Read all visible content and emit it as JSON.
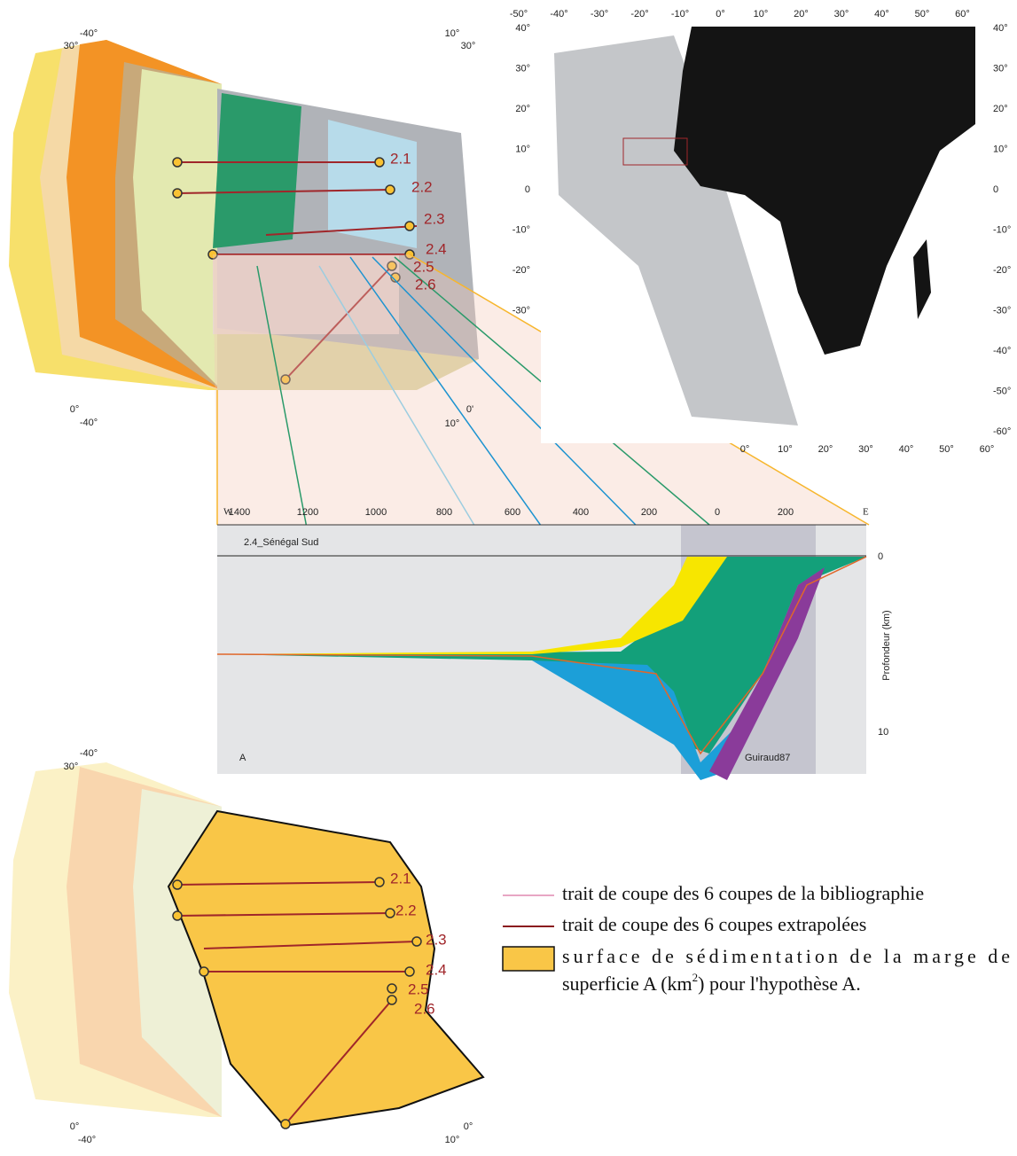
{
  "top_map": {
    "corners": [
      "-40°",
      "30°",
      "10°",
      "30°",
      "0°",
      "-40°",
      "0'",
      "10°"
    ],
    "sections": [
      "2.1",
      "2.2",
      "2.3",
      "2.4",
      "2.5",
      "2.6"
    ]
  },
  "world_map": {
    "top_lon": [
      "-50°",
      "-40°",
      "-30°",
      "-20°",
      "-10°",
      "0°",
      "10°",
      "20°",
      "30°",
      "40°",
      "50°",
      "60°"
    ],
    "bottom_lon": [
      "0°",
      "10°",
      "20°",
      "30°",
      "40°",
      "50°",
      "60°"
    ],
    "left_lat": [
      "40°",
      "30°",
      "20°",
      "10°",
      "0",
      "-10°",
      "-20°",
      "-30°"
    ],
    "right_lat": [
      "40°",
      "30°",
      "20°",
      "10°",
      "0",
      "-10°",
      "-20°",
      "-30°",
      "-40°",
      "-50°",
      "-60°"
    ]
  },
  "section": {
    "title": "2.4_Sénégal Sud",
    "west": "W",
    "east": "E",
    "distance_ticks": [
      "1400",
      "1200",
      "1000",
      "800",
      "600",
      "400",
      "200",
      "0",
      "200"
    ],
    "depth_label": "Profondeur (km)",
    "depth_ticks": [
      "0",
      "10"
    ],
    "hypothesis": "A",
    "source": "Guiraud87"
  },
  "bottom_map": {
    "corners": [
      "-40°",
      "30°",
      "0°",
      "-40°",
      "0°",
      "10°"
    ],
    "sections": [
      "2.1",
      "2.2",
      "2.3",
      "2.4",
      "2.5",
      "2.6"
    ]
  },
  "legend": {
    "items": [
      {
        "text": "trait de coupe des 6 coupes de la bibliographie"
      },
      {
        "text": "trait de coupe des 6 coupes extrapolées"
      },
      {
        "line1": "surface de sédimentation de la marge de",
        "line2_start": "superficie A (km",
        "superscript": "2",
        "line2_end": ") pour l'hypothèse A."
      }
    ]
  }
}
